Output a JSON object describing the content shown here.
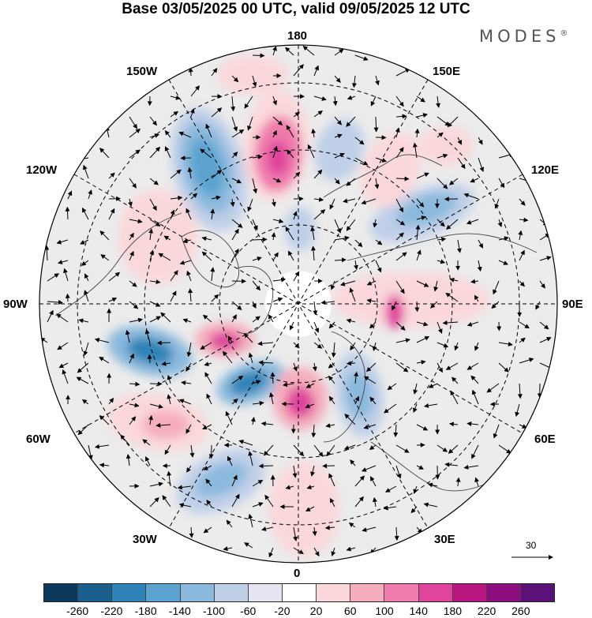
{
  "title": "Base 03/05/2025 00 UTC, valid 09/05/2025 12 UTC",
  "logo": "MODES",
  "logo_mark": "®",
  "longitude_labels": {
    "top": "180",
    "upper_left": "150W",
    "upper_right": "150E",
    "left_upper": "120W",
    "right_upper": "120E",
    "left": "90W",
    "right": "90E",
    "left_lower": "60W",
    "right_lower": "60E",
    "lower_left": "30W",
    "lower_right": "30E",
    "bottom": "0"
  },
  "reference_vector": {
    "label": "30"
  },
  "colorbar": {
    "colors": [
      "#0d3a5c",
      "#1a5f8e",
      "#2f83b8",
      "#5ba3d0",
      "#8bb9dd",
      "#bfcfe8",
      "#e6e3f2",
      "#ffffff",
      "#fad7da",
      "#f5adbc",
      "#ef7cac",
      "#e0449d",
      "#b8177f",
      "#8e0d80",
      "#5a1178"
    ],
    "tick_labels": [
      "-260",
      "-220",
      "-180",
      "-140",
      "-100",
      "-60",
      "-20",
      "20",
      "60",
      "100",
      "140",
      "180",
      "220",
      "260"
    ]
  }
}
